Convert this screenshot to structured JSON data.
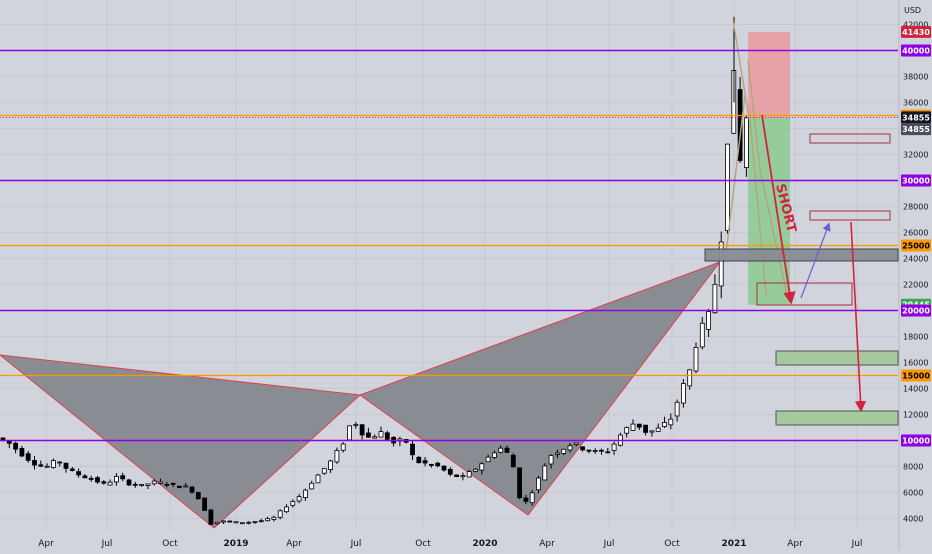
{
  "chart_data": {
    "type": "candlestick",
    "currency_label": "USD",
    "x_axis_labels": [
      "Apr",
      "Jul",
      "Oct",
      "2019",
      "Apr",
      "Jul",
      "Oct",
      "2020",
      "Apr",
      "Jul",
      "Oct",
      "2021",
      "Apr",
      "Jul"
    ],
    "y_ticks": [
      4000,
      6000,
      8000,
      10000,
      12000,
      14000,
      16000,
      18000,
      20000,
      22000,
      24000,
      26000,
      28000,
      30000,
      32000,
      34000,
      36000,
      38000,
      40000,
      42000
    ],
    "ylim": [
      3000,
      43000
    ],
    "price_markers": [
      {
        "value": 41430,
        "label": "41430",
        "bg": "#d1223f",
        "fg": "#ffffff"
      },
      {
        "value": 40000,
        "label": "40000",
        "bg": "#8f00e5",
        "fg": "#ffffff"
      },
      {
        "value": 35000,
        "label": "35000",
        "bg": "#ff9800",
        "fg": "#000000"
      },
      {
        "value": 34855,
        "label": "34855",
        "bg": "#131722",
        "fg": "#ffffff"
      },
      {
        "value": 33950,
        "label": "34855",
        "bg": "#4a4e59",
        "fg": "#ffffff"
      },
      {
        "value": 30000,
        "label": "30000",
        "bg": "#8f00e5",
        "fg": "#ffffff"
      },
      {
        "value": 25000,
        "label": "25000",
        "bg": "#ff9800",
        "fg": "#000000"
      },
      {
        "value": 20445,
        "label": "20445",
        "bg": "#3aa757",
        "fg": "#ffffff"
      },
      {
        "value": 20000,
        "label": "20000",
        "bg": "#8f00e5",
        "fg": "#ffffff"
      },
      {
        "value": 15000,
        "label": "15000",
        "bg": "#ff9800",
        "fg": "#000000"
      },
      {
        "value": 10000,
        "label": "10000",
        "bg": "#8f00e5",
        "fg": "#ffffff"
      }
    ],
    "horizontal_levels": [
      {
        "value": 40000,
        "color": "#8f00e5"
      },
      {
        "value": 35000,
        "color": "#ff9800"
      },
      {
        "value": 30000,
        "color": "#8f00e5"
      },
      {
        "value": 25000,
        "color": "#ff9800"
      },
      {
        "value": 20000,
        "color": "#8f00e5"
      },
      {
        "value": 15000,
        "color": "#ff9800"
      },
      {
        "value": 10000,
        "color": "#8f00e5"
      }
    ],
    "annotation_text": "SHORT",
    "colors": {
      "background": "#d1d4dc",
      "up_candle": "#ffffff",
      "down_candle": "#000000",
      "pattern_fill": "#8a8c93",
      "pattern_edge": "#e0404a",
      "stop_zone": "#e99aa0",
      "target_zone": "#8cc991",
      "arrow_red": "#d1223f",
      "arrow_blue": "#6b5bd8",
      "support_box": "#a8c9a0"
    }
  }
}
